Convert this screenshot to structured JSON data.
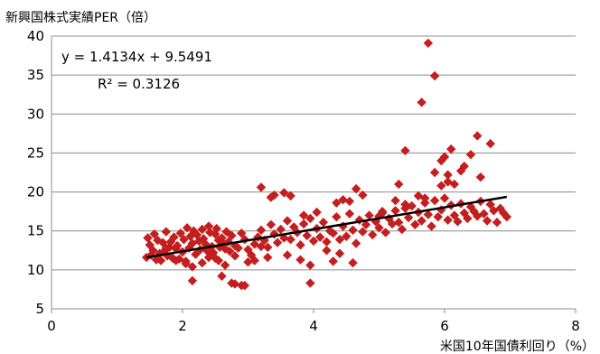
{
  "chart_data": {
    "type": "scatter",
    "ylabel": "新興国株式実績PER（倍）",
    "xlabel": "米国10年国債利回り（%）",
    "xlim": [
      0,
      8
    ],
    "ylim": [
      5,
      40
    ],
    "xticks": [
      "0",
      "2",
      "4",
      "6",
      "8"
    ],
    "yticks": [
      "5",
      "10",
      "15",
      "20",
      "25",
      "30",
      "35",
      "40"
    ],
    "grid": "horizontal",
    "legend": "none",
    "marker_color": "#c41e1e",
    "trendline_color": "#000000",
    "trendline": {
      "slope": 1.4134,
      "intercept": 9.5491,
      "x_range": [
        1.45,
        6.95
      ]
    },
    "equation": "y = 1.4134x + 9.5491",
    "r_squared": "R² = 0.3126",
    "points": [
      [
        1.45,
        11.6
      ],
      [
        1.47,
        14.1
      ],
      [
        1.5,
        13.2
      ],
      [
        1.52,
        11.9
      ],
      [
        1.55,
        12.5
      ],
      [
        1.57,
        14.6
      ],
      [
        1.6,
        11.3
      ],
      [
        1.62,
        13.8
      ],
      [
        1.65,
        12.1
      ],
      [
        1.67,
        11.2
      ],
      [
        1.7,
        13.5
      ],
      [
        1.72,
        12.4
      ],
      [
        1.75,
        14.9
      ],
      [
        1.77,
        11.8
      ],
      [
        1.8,
        12.9
      ],
      [
        1.82,
        13.6
      ],
      [
        1.85,
        11.5
      ],
      [
        1.87,
        14.2
      ],
      [
        1.9,
        12.7
      ],
      [
        1.92,
        13.1
      ],
      [
        1.95,
        11.4
      ],
      [
        1.97,
        14.7
      ],
      [
        2.0,
        12.3
      ],
      [
        2.02,
        13.9
      ],
      [
        2.05,
        11.1
      ],
      [
        2.07,
        15.4
      ],
      [
        2.1,
        12.8
      ],
      [
        2.12,
        14.3
      ],
      [
        2.15,
        13.4
      ],
      [
        2.17,
        15.0
      ],
      [
        2.2,
        12.0
      ],
      [
        2.22,
        14.5
      ],
      [
        2.25,
        13.7
      ],
      [
        2.27,
        12.6
      ],
      [
        2.3,
        15.2
      ],
      [
        2.32,
        14.0
      ],
      [
        2.35,
        13.3
      ],
      [
        2.37,
        12.5
      ],
      [
        2.4,
        15.6
      ],
      [
        2.42,
        14.8
      ],
      [
        2.45,
        13.0
      ],
      [
        2.47,
        12.2
      ],
      [
        2.5,
        14.6
      ],
      [
        2.52,
        15.3
      ],
      [
        2.55,
        13.8
      ],
      [
        2.57,
        12.9
      ],
      [
        2.6,
        14.1
      ],
      [
        2.62,
        13.4
      ],
      [
        2.65,
        12.7
      ],
      [
        2.67,
        14.9
      ],
      [
        2.7,
        13.6
      ],
      [
        2.72,
        12.4
      ],
      [
        2.75,
        14.4
      ],
      [
        2.8,
        13.1
      ],
      [
        2.85,
        12.8
      ],
      [
        2.9,
        14.7
      ],
      [
        2.95,
        13.9
      ],
      [
        3.0,
        12.6
      ],
      [
        3.05,
        11.9
      ],
      [
        3.1,
        13.3
      ],
      [
        3.15,
        14.2
      ],
      [
        3.2,
        15.1
      ],
      [
        3.25,
        13.8
      ],
      [
        3.3,
        12.9
      ],
      [
        3.35,
        15.8
      ],
      [
        3.4,
        14.6
      ],
      [
        3.45,
        13.5
      ],
      [
        3.5,
        15.2
      ],
      [
        3.55,
        14.1
      ],
      [
        3.6,
        16.3
      ],
      [
        3.65,
        13.9
      ],
      [
        3.7,
        15.5
      ],
      [
        3.75,
        14.8
      ],
      [
        3.8,
        13.2
      ],
      [
        3.85,
        15.9
      ],
      [
        3.9,
        14.4
      ],
      [
        3.95,
        16.6
      ],
      [
        4.0,
        13.7
      ],
      [
        4.05,
        15.3
      ],
      [
        4.1,
        14.2
      ],
      [
        4.15,
        16.1
      ],
      [
        4.2,
        13.6
      ],
      [
        4.25,
        15.0
      ],
      [
        4.3,
        14.7
      ],
      [
        4.35,
        16.8
      ],
      [
        4.4,
        13.9
      ],
      [
        4.45,
        15.6
      ],
      [
        4.5,
        14.3
      ],
      [
        4.55,
        17.2
      ],
      [
        4.6,
        15.1
      ],
      [
        4.65,
        13.4
      ],
      [
        4.7,
        16.4
      ],
      [
        4.75,
        14.9
      ],
      [
        4.8,
        15.8
      ],
      [
        4.85,
        17.0
      ],
      [
        4.9,
        14.5
      ],
      [
        4.95,
        16.2
      ],
      [
        5.0,
        15.4
      ],
      [
        5.05,
        17.3
      ],
      [
        5.1,
        14.8
      ],
      [
        5.15,
        16.6
      ],
      [
        5.2,
        15.9
      ],
      [
        5.25,
        17.6
      ],
      [
        5.3,
        16.1
      ],
      [
        5.35,
        15.2
      ],
      [
        5.4,
        17.9
      ],
      [
        5.45,
        16.7
      ],
      [
        5.5,
        18.2
      ],
      [
        5.55,
        15.8
      ],
      [
        5.6,
        17.4
      ],
      [
        5.65,
        16.3
      ],
      [
        5.7,
        18.6
      ],
      [
        5.75,
        17.1
      ],
      [
        5.8,
        15.6
      ],
      [
        5.85,
        18.9
      ],
      [
        5.9,
        16.8
      ],
      [
        5.95,
        17.7
      ],
      [
        6.0,
        19.2
      ],
      [
        6.05,
        16.4
      ],
      [
        6.1,
        18.3
      ],
      [
        6.15,
        17.0
      ],
      [
        6.2,
        16.2
      ],
      [
        6.25,
        18.5
      ],
      [
        6.3,
        17.3
      ],
      [
        6.35,
        16.6
      ],
      [
        6.4,
        18.1
      ],
      [
        6.45,
        17.5
      ],
      [
        6.5,
        16.9
      ],
      [
        6.55,
        18.8
      ],
      [
        6.6,
        17.2
      ],
      [
        6.65,
        16.3
      ],
      [
        6.7,
        18.4
      ],
      [
        6.75,
        17.6
      ],
      [
        6.8,
        16.1
      ],
      [
        6.85,
        17.9
      ],
      [
        6.9,
        17.3
      ],
      [
        6.95,
        16.8
      ],
      [
        2.05,
        10.8
      ],
      [
        2.15,
        10.4
      ],
      [
        2.3,
        10.9
      ],
      [
        2.5,
        11.5
      ],
      [
        2.65,
        10.6
      ],
      [
        2.8,
        11.8
      ],
      [
        3.0,
        11.0
      ],
      [
        3.1,
        11.2
      ],
      [
        3.3,
        11.6
      ],
      [
        3.6,
        11.9
      ],
      [
        3.8,
        11.3
      ],
      [
        3.95,
        10.6
      ],
      [
        4.3,
        11.1
      ],
      [
        4.6,
        10.9
      ],
      [
        4.4,
        12.1
      ],
      [
        2.4,
        11.6
      ],
      [
        1.75,
        12.8
      ],
      [
        1.9,
        11.2
      ],
      [
        4.2,
        12.5
      ],
      [
        3.2,
        13.0
      ],
      [
        2.15,
        8.6
      ],
      [
        2.6,
        9.2
      ],
      [
        2.8,
        8.2
      ],
      [
        2.9,
        8.0
      ],
      [
        2.95,
        8.0
      ],
      [
        3.95,
        8.3
      ],
      [
        2.75,
        8.3
      ],
      [
        2.55,
        11.2
      ],
      [
        3.2,
        20.6
      ],
      [
        3.35,
        19.3
      ],
      [
        3.4,
        19.6
      ],
      [
        3.55,
        19.9
      ],
      [
        3.65,
        19.5
      ],
      [
        3.85,
        17.0
      ],
      [
        4.05,
        17.4
      ],
      [
        4.35,
        18.6
      ],
      [
        4.45,
        19.0
      ],
      [
        4.55,
        18.8
      ],
      [
        4.65,
        20.4
      ],
      [
        4.75,
        19.6
      ],
      [
        5.0,
        16.9
      ],
      [
        5.05,
        17.5
      ],
      [
        5.25,
        18.9
      ],
      [
        5.4,
        18.4
      ],
      [
        5.3,
        21.0
      ],
      [
        5.4,
        25.3
      ],
      [
        5.6,
        19.5
      ],
      [
        5.7,
        19.2
      ],
      [
        5.75,
        39.1
      ],
      [
        5.65,
        31.5
      ],
      [
        5.85,
        34.9
      ],
      [
        5.85,
        22.5
      ],
      [
        5.95,
        24.0
      ],
      [
        6.0,
        24.5
      ],
      [
        6.05,
        22.2
      ],
      [
        6.05,
        21.3
      ],
      [
        6.15,
        21.0
      ],
      [
        6.25,
        22.7
      ],
      [
        6.3,
        23.3
      ],
      [
        6.4,
        24.8
      ],
      [
        6.5,
        27.2
      ],
      [
        6.7,
        26.2
      ],
      [
        6.55,
        21.9
      ],
      [
        6.1,
        25.5
      ],
      [
        5.95,
        20.8
      ]
    ]
  }
}
